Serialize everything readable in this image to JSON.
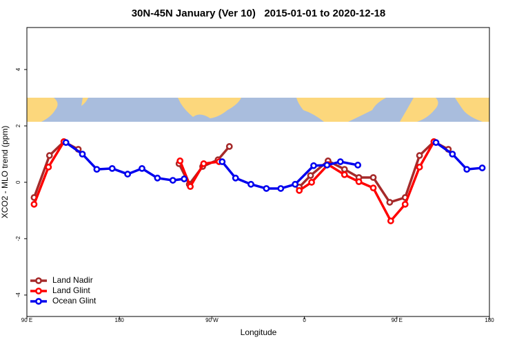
{
  "chart_data": {
    "type": "line",
    "title": "30N-45N January (Ver 10)   2015-01-01 to 2020-12-18",
    "x_label": "Longitude",
    "y_label": "XCO2 - MLO trend (ppm)",
    "xlim": [
      90,
      540
    ],
    "xticks": [
      {
        "value": 90,
        "label": "90 E"
      },
      180,
      {
        "value": 270,
        "label": "90 W"
      },
      {
        "value": 360,
        "label": "0"
      },
      {
        "value": 450,
        "label": "90 E"
      },
      {
        "value": 540,
        "label": "180"
      }
    ],
    "ylim": [
      -4.76,
      5.49
    ],
    "yticks": [
      -4,
      -2,
      0,
      2,
      4
    ],
    "legend": "bottomleft",
    "series": [
      {
        "name": "Land Nadir",
        "color": "#a52a2a",
        "x": [
          97,
          112,
          126,
          140,
          null,
          238,
          248,
          261,
          276,
          287,
          null,
          355,
          366,
          383,
          399,
          413,
          427,
          443,
          458,
          472,
          486,
          500
        ],
        "values": [
          -0.54,
          0.95,
          1.44,
          1.17,
          null,
          0.66,
          -0.07,
          0.56,
          0.8,
          1.27,
          null,
          -0.17,
          0.24,
          0.76,
          0.46,
          0.17,
          0.17,
          -0.71,
          -0.54,
          0.95,
          1.44,
          1.17
        ]
      },
      {
        "name": "Land Glint",
        "color": "#ff0000",
        "x": [
          97,
          111,
          126,
          null,
          239,
          249,
          262,
          277,
          null,
          355,
          367,
          383,
          399,
          413,
          427,
          444,
          458,
          472,
          486
        ],
        "values": [
          -0.78,
          0.54,
          1.44,
          null,
          0.76,
          -0.15,
          0.66,
          0.73,
          null,
          -0.29,
          0,
          0.63,
          0.27,
          0.02,
          -0.2,
          -1.37,
          -0.78,
          0.54,
          1.44
        ]
      },
      {
        "name": "Ocean Glint",
        "color": "#0000ee",
        "x": [
          128,
          144,
          158,
          173,
          188,
          202,
          217,
          232,
          243,
          null,
          280,
          293,
          308,
          323,
          337,
          351,
          369,
          382,
          395,
          412,
          null,
          488,
          504,
          518,
          533
        ],
        "values": [
          1.41,
          1.0,
          0.46,
          0.49,
          0.29,
          0.49,
          0.15,
          0.07,
          0.12,
          null,
          0.73,
          0.15,
          -0.07,
          -0.22,
          -0.22,
          -0.07,
          0.59,
          0.61,
          0.73,
          0.61,
          null,
          1.41,
          1.0,
          0.46,
          0.51
        ]
      }
    ]
  }
}
